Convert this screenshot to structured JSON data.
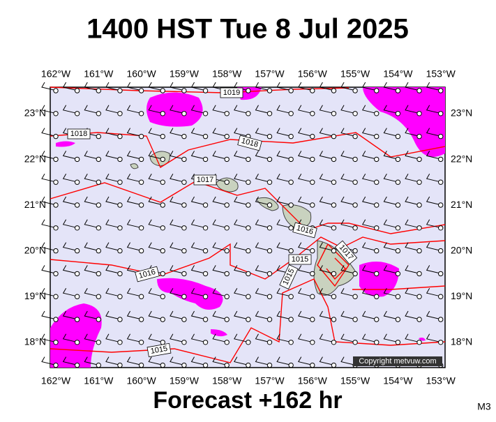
{
  "header": {
    "title": "1400 HST Tue 8 Jul 2025"
  },
  "map": {
    "lon_labels": [
      "162°W",
      "161°W",
      "160°W",
      "159°W",
      "158°W",
      "157°W",
      "156°W",
      "155°W",
      "154°W",
      "153°W"
    ],
    "lat_labels": [
      "23°N",
      "22°N",
      "21°N",
      "20°N",
      "19°N",
      "18°N"
    ],
    "isobar_labels": [
      "1019",
      "1018",
      "1018",
      "1017",
      "1016",
      "1017",
      "1015",
      "1015",
      "1016",
      "1015"
    ],
    "copyright": "Copyright metvuw.com"
  },
  "footer": {
    "forecast": "Forecast +162 hr",
    "code": "M3"
  }
}
